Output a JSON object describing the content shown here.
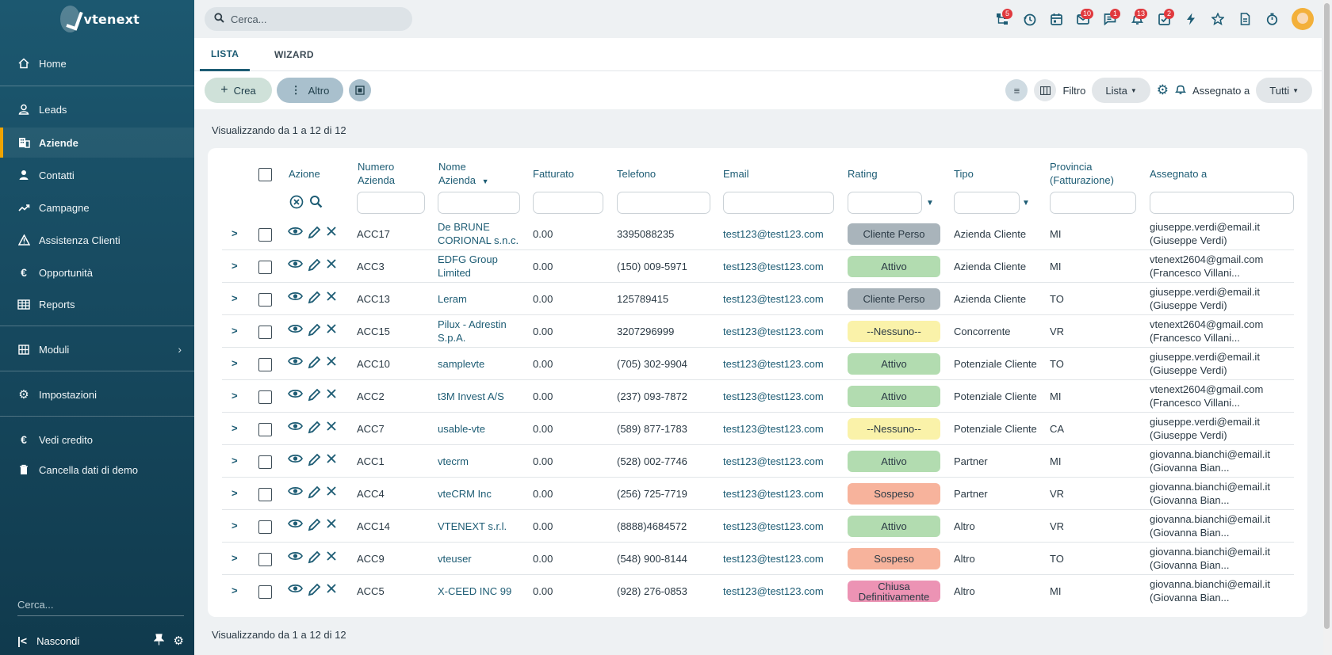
{
  "app": {
    "name": "vtenext"
  },
  "sidebar": {
    "items": [
      {
        "label": "Home",
        "icon": "home-icon"
      },
      {
        "label": "Leads",
        "icon": "user-icon"
      },
      {
        "label": "Aziende",
        "icon": "building-icon",
        "active": true
      },
      {
        "label": "Contatti",
        "icon": "person-icon"
      },
      {
        "label": "Campagne",
        "icon": "trend-icon"
      },
      {
        "label": "Assistenza Clienti",
        "icon": "warning-icon"
      },
      {
        "label": "Opportunità",
        "icon": "euro-icon"
      },
      {
        "label": "Reports",
        "icon": "table-icon"
      }
    ],
    "moduli": "Moduli",
    "impostazioni": "Impostazioni",
    "vedi_credito": "Vedi credito",
    "cancella": "Cancella dati di demo",
    "search_placeholder": "Cerca...",
    "nascondi": "Nascondi"
  },
  "topbar": {
    "search_placeholder": "Cerca...",
    "badges": {
      "structure": "5",
      "mail": "10",
      "chat": "1",
      "bell": "13",
      "tasks": "2"
    }
  },
  "tabs": [
    "LISTA",
    "WIZARD"
  ],
  "toolbar": {
    "crea": "Crea",
    "altro": "Altro",
    "filtro_label": "Filtro",
    "filtro_value": "Lista",
    "assegnato_label": "Assegnato a",
    "assegnato_value": "Tutti"
  },
  "count_text": "Visualizzando da 1 a 12 di 12",
  "table": {
    "headers": {
      "azione": "Azione",
      "numero": [
        "Numero",
        "Azienda"
      ],
      "nome": [
        "Nome",
        "Azienda"
      ],
      "fatturato": "Fatturato",
      "telefono": "Telefono",
      "email": "Email",
      "rating": "Rating",
      "tipo": "Tipo",
      "provincia": [
        "Provincia",
        "(Fatturazione)"
      ],
      "assegnato": "Assegnato a"
    },
    "rows": [
      {
        "numero": "ACC17",
        "nome": [
          "De BRUNE",
          "CORIONAL s.n.c."
        ],
        "fatturato": "0.00",
        "telefono": "3395088235",
        "email": "test123@test123.com",
        "rating": "Cliente Perso",
        "rating_color": "#a9b4bb",
        "tipo": "Azienda Cliente",
        "provincia": "MI",
        "assegnato": [
          "giuseppe.verdi@email.it",
          "(Giuseppe Verdi)"
        ]
      },
      {
        "numero": "ACC3",
        "nome": [
          "EDFG Group",
          "Limited"
        ],
        "fatturato": "0.00",
        "telefono": "(150) 009-5971",
        "email": "test123@test123.com",
        "rating": "Attivo",
        "rating_color": "#b2dcb0",
        "tipo": "Azienda Cliente",
        "provincia": "MI",
        "assegnato": [
          "vtenext2604@gmail.com",
          "(Francesco Villani..."
        ]
      },
      {
        "numero": "ACC13",
        "nome": [
          "Leram"
        ],
        "fatturato": "0.00",
        "telefono": "125789415",
        "email": "test123@test123.com",
        "rating": "Cliente Perso",
        "rating_color": "#a9b4bb",
        "tipo": "Azienda Cliente",
        "provincia": "TO",
        "assegnato": [
          "giuseppe.verdi@email.it",
          "(Giuseppe Verdi)"
        ]
      },
      {
        "numero": "ACC15",
        "nome": [
          "Pilux - Adrestin",
          "S.p.A."
        ],
        "fatturato": "0.00",
        "telefono": "3207296999",
        "email": "test123@test123.com",
        "rating": "--Nessuno--",
        "rating_color": "#faf2a9",
        "tipo": "Concorrente",
        "provincia": "VR",
        "assegnato": [
          "vtenext2604@gmail.com",
          "(Francesco Villani..."
        ]
      },
      {
        "numero": "ACC10",
        "nome": [
          "samplevte"
        ],
        "fatturato": "0.00",
        "telefono": "(705) 302-9904",
        "email": "test123@test123.com",
        "rating": "Attivo",
        "rating_color": "#b2dcb0",
        "tipo": "Potenziale Cliente",
        "provincia": "TO",
        "assegnato": [
          "giuseppe.verdi@email.it",
          "(Giuseppe Verdi)"
        ]
      },
      {
        "numero": "ACC2",
        "nome": [
          "t3M Invest A/S"
        ],
        "fatturato": "0.00",
        "telefono": "(237) 093-7872",
        "email": "test123@test123.com",
        "rating": "Attivo",
        "rating_color": "#b2dcb0",
        "tipo": "Potenziale Cliente",
        "provincia": "MI",
        "assegnato": [
          "vtenext2604@gmail.com",
          "(Francesco Villani..."
        ]
      },
      {
        "numero": "ACC7",
        "nome": [
          "usable-vte"
        ],
        "fatturato": "0.00",
        "telefono": "(589) 877-1783",
        "email": "test123@test123.com",
        "rating": "--Nessuno--",
        "rating_color": "#faf2a9",
        "tipo": "Potenziale Cliente",
        "provincia": "CA",
        "assegnato": [
          "giuseppe.verdi@email.it",
          "(Giuseppe Verdi)"
        ]
      },
      {
        "numero": "ACC1",
        "nome": [
          "vtecrm"
        ],
        "fatturato": "0.00",
        "telefono": "(528) 002-7746",
        "email": "test123@test123.com",
        "rating": "Attivo",
        "rating_color": "#b2dcb0",
        "tipo": "Partner",
        "provincia": "MI",
        "assegnato": [
          "giovanna.bianchi@email.it",
          "(Giovanna Bian..."
        ]
      },
      {
        "numero": "ACC4",
        "nome": [
          "vteCRM Inc"
        ],
        "fatturato": "0.00",
        "telefono": "(256) 725-7719",
        "email": "test123@test123.com",
        "rating": "Sospeso",
        "rating_color": "#f7b39c",
        "tipo": "Partner",
        "provincia": "VR",
        "assegnato": [
          "giovanna.bianchi@email.it",
          "(Giovanna Bian..."
        ]
      },
      {
        "numero": "ACC14",
        "nome": [
          "VTENEXT s.r.l."
        ],
        "fatturato": "0.00",
        "telefono": "(8888)4684572",
        "email": "test123@test123.com",
        "rating": "Attivo",
        "rating_color": "#b2dcb0",
        "tipo": "Altro",
        "provincia": "VR",
        "assegnato": [
          "giovanna.bianchi@email.it",
          "(Giovanna Bian..."
        ]
      },
      {
        "numero": "ACC9",
        "nome": [
          "vteuser"
        ],
        "fatturato": "0.00",
        "telefono": "(548) 900-8144",
        "email": "test123@test123.com",
        "rating": "Sospeso",
        "rating_color": "#f7b39c",
        "tipo": "Altro",
        "provincia": "TO",
        "assegnato": [
          "giovanna.bianchi@email.it",
          "(Giovanna Bian..."
        ]
      },
      {
        "numero": "ACC5",
        "nome": [
          "X-CEED INC 99"
        ],
        "fatturato": "0.00",
        "telefono": "(928) 276-0853",
        "email": "test123@test123.com",
        "rating": "Chiusa Definitivamente",
        "rating_color": "#ec93b4",
        "tipo": "Altro",
        "provincia": "MI",
        "assegnato": [
          "giovanna.bianchi@email.it",
          "(Giovanna Bian..."
        ]
      }
    ]
  }
}
